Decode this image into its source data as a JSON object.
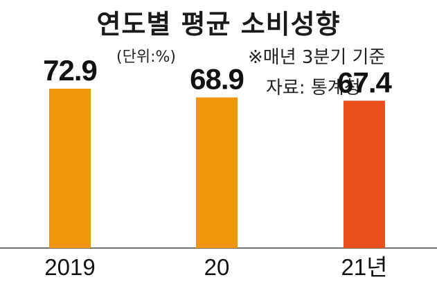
{
  "title": "연도별 평균 소비성향",
  "unit_label": "(단위:%)",
  "note": "※매년 3분기 기준",
  "source": "자료: 통계청",
  "chart_data": {
    "type": "bar",
    "categories": [
      "2019",
      "20",
      "21년"
    ],
    "values": [
      72.9,
      68.9,
      67.4
    ],
    "value_labels": [
      "72.9",
      "68.9",
      "67.4"
    ],
    "colors": [
      "#F0960A",
      "#F0960A",
      "#E8501E"
    ],
    "ylim": [
      0,
      72.9
    ],
    "title": "연도별 평균 소비성향",
    "xlabel": "",
    "ylabel": "",
    "grid": false
  }
}
